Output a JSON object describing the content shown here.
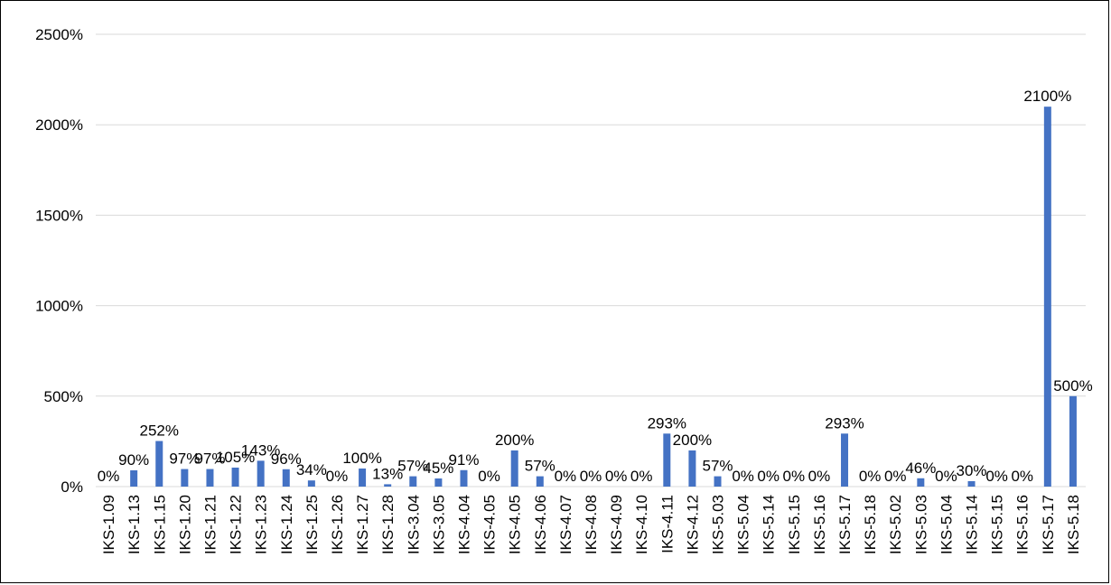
{
  "chart_data": {
    "type": "bar",
    "title": "",
    "xlabel": "",
    "ylabel": "",
    "ylim": [
      0,
      2500
    ],
    "y_ticks": [
      0,
      500,
      1000,
      1500,
      2000,
      2500
    ],
    "y_tick_labels": [
      "0%",
      "500%",
      "1000%",
      "1500%",
      "2000%",
      "2500%"
    ],
    "grid": true,
    "legend": "none",
    "bar_color": "#4472c4",
    "categories": [
      "IKS-1.09",
      "IKS-1.13",
      "IKS-1.15",
      "IKS-1.20",
      "IKS-1.21",
      "IKS-1.22",
      "IKS-1.23",
      "IKS-1.24",
      "IKS-1.25",
      "IKS-1.26",
      "IKS-1.27",
      "IKS-1.28",
      "IKS-3.04",
      "IKS-3.05",
      "IKS-4.04",
      "IKS-4.05",
      "IKS-4.05",
      "IKS-4.06",
      "IKS-4.07",
      "IKS-4.08",
      "IKS-4.09",
      "IKS-4.10",
      "IKS-4.11",
      "IKS-4.12",
      "IKS-5.03",
      "IKS-5.04",
      "IKS-5.14",
      "IKS-5.15",
      "IKS-5.16",
      "IKS-5.17",
      "IKS-5.18",
      "IKS-5.02",
      "IKS-5.03",
      "IKS-5.04",
      "IKS-5.14",
      "IKS-5.15",
      "IKS-5.16",
      "IKS-5.17",
      "IKS-5.18"
    ],
    "values": [
      0,
      90,
      252,
      97,
      97,
      105,
      143,
      96,
      34,
      0,
      100,
      13,
      57,
      45,
      91,
      0,
      200,
      57,
      0,
      0,
      0,
      0,
      293,
      200,
      57,
      0,
      0,
      0,
      0,
      293,
      0,
      0,
      46,
      0,
      30,
      0,
      0,
      2100,
      500
    ],
    "data_labels": [
      "0%",
      "90%",
      "252%",
      "97%",
      "97%",
      "105%",
      "143%",
      "96%",
      "34%",
      "0%",
      "100%",
      "13%",
      "57%",
      "45%",
      "91%",
      "0%",
      "200%",
      "57%",
      "0%",
      "0%",
      "0%",
      "0%",
      "293%",
      "200%",
      "57%",
      "0%",
      "0%",
      "0%",
      "0%",
      "293%",
      "0%",
      "0%",
      "46%",
      "0%",
      "30%",
      "0%",
      "0%",
      "2100%",
      "500%"
    ]
  }
}
